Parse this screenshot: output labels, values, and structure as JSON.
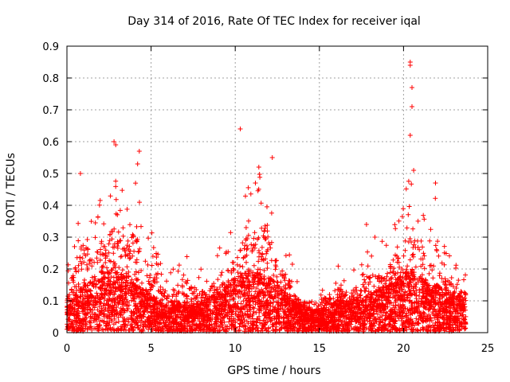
{
  "chart_data": {
    "type": "scatter",
    "title": "Day 314 of 2016, Rate Of TEC Index for receiver iqal",
    "xlabel": "GPS time / hours",
    "ylabel": "ROTI / TECUs",
    "xlim": [
      0,
      25
    ],
    "ylim": [
      0,
      0.9
    ],
    "xticks": [
      0,
      5,
      10,
      15,
      20,
      25
    ],
    "yticks": [
      0,
      0.1,
      0.2,
      0.3,
      0.4,
      0.5,
      0.6,
      0.7,
      0.8,
      0.9
    ],
    "grid": true,
    "marker": "+",
    "color": "#ff0000",
    "data_range_x": [
      0,
      23.7
    ],
    "envelope": {
      "x": [
        0.0,
        0.5,
        1.0,
        1.5,
        2.0,
        2.5,
        3.0,
        3.5,
        4.0,
        4.5,
        5.0,
        5.5,
        6.0,
        6.5,
        7.0,
        7.5,
        8.0,
        8.5,
        9.0,
        9.5,
        10.0,
        10.5,
        11.0,
        11.5,
        12.0,
        12.5,
        13.0,
        13.5,
        14.0,
        14.5,
        15.0,
        15.5,
        16.0,
        16.5,
        17.0,
        17.5,
        18.0,
        18.5,
        19.0,
        19.5,
        20.0,
        20.5,
        21.0,
        21.5,
        22.0,
        22.5,
        23.0,
        23.5
      ],
      "upper": [
        0.2,
        0.33,
        0.5,
        0.35,
        0.45,
        0.47,
        0.6,
        0.45,
        0.57,
        0.35,
        0.34,
        0.23,
        0.2,
        0.22,
        0.27,
        0.22,
        0.2,
        0.21,
        0.28,
        0.31,
        0.35,
        0.47,
        0.5,
        0.53,
        0.55,
        0.34,
        0.3,
        0.2,
        0.14,
        0.15,
        0.16,
        0.17,
        0.22,
        0.2,
        0.22,
        0.22,
        0.34,
        0.3,
        0.31,
        0.38,
        0.43,
        0.51,
        0.48,
        0.3,
        0.47,
        0.26,
        0.22,
        0.2
      ],
      "typical": [
        0.07,
        0.09,
        0.12,
        0.13,
        0.15,
        0.16,
        0.16,
        0.14,
        0.13,
        0.11,
        0.09,
        0.08,
        0.07,
        0.07,
        0.08,
        0.07,
        0.08,
        0.09,
        0.1,
        0.12,
        0.14,
        0.15,
        0.16,
        0.15,
        0.14,
        0.12,
        0.1,
        0.08,
        0.07,
        0.06,
        0.06,
        0.07,
        0.08,
        0.08,
        0.08,
        0.09,
        0.1,
        0.11,
        0.12,
        0.13,
        0.15,
        0.16,
        0.14,
        0.12,
        0.12,
        0.11,
        0.1,
        0.09
      ]
    },
    "notable_points": [
      {
        "x": 2.8,
        "y": 0.6
      },
      {
        "x": 2.9,
        "y": 0.59
      },
      {
        "x": 4.3,
        "y": 0.57
      },
      {
        "x": 4.2,
        "y": 0.53
      },
      {
        "x": 0.8,
        "y": 0.5
      },
      {
        "x": 10.3,
        "y": 0.64
      },
      {
        "x": 11.4,
        "y": 0.52
      },
      {
        "x": 12.2,
        "y": 0.55
      },
      {
        "x": 20.4,
        "y": 0.85
      },
      {
        "x": 20.4,
        "y": 0.84
      },
      {
        "x": 20.5,
        "y": 0.77
      },
      {
        "x": 20.5,
        "y": 0.71
      },
      {
        "x": 20.4,
        "y": 0.62
      },
      {
        "x": 20.6,
        "y": 0.51
      },
      {
        "x": 21.9,
        "y": 0.47
      },
      {
        "x": 17.8,
        "y": 0.34
      },
      {
        "x": 18.3,
        "y": 0.3
      }
    ]
  }
}
